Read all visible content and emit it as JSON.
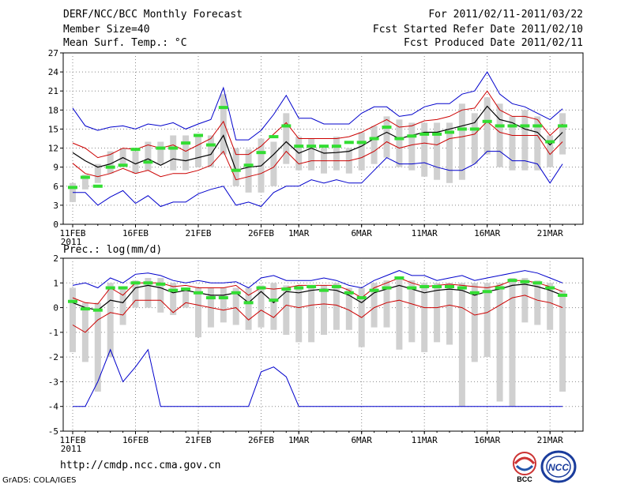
{
  "header": {
    "title": "DERF/NCC/BCC Monthly Forecast",
    "member_size": "Member Size=40",
    "variable": "Mean Surf. Temp.: °C",
    "period": "For 2011/02/11-2011/03/22",
    "started": "Fcst Started Refer Date 2011/02/10",
    "produced": "Fcst Produced Date 2011/02/11"
  },
  "footer": {
    "url": "http://cmdp.ncc.cma.gov.cn",
    "grads": "GrADS: COLA/IGES",
    "logo_bcc": "BCC",
    "logo_ncc": "NCC"
  },
  "colors": {
    "max": "#0000cc",
    "min": "#0000cc",
    "upper": "#cc0000",
    "lower": "#cc0000",
    "mean": "#000000",
    "box": "#d0d0d0",
    "median": "#33dd33",
    "grid": "#888888"
  },
  "chart_data": [
    {
      "type": "line",
      "title": "Mean Surf. Temp.: °C",
      "ylabel": "",
      "ylim": [
        0,
        27
      ],
      "yticks": [
        0,
        3,
        6,
        9,
        12,
        15,
        18,
        21,
        24,
        27
      ],
      "xlim": [
        1,
        41
      ],
      "xticks": [
        {
          "x": 1,
          "label": "11FEB",
          "year": "2011"
        },
        {
          "x": 6,
          "label": "16FEB"
        },
        {
          "x": 11,
          "label": "21FEB"
        },
        {
          "x": 16,
          "label": "26FEB"
        },
        {
          "x": 19,
          "label": "1MAR"
        },
        {
          "x": 24,
          "label": "6MAR"
        },
        {
          "x": 29,
          "label": "11MAR"
        },
        {
          "x": 34,
          "label": "16MAR"
        },
        {
          "x": 39,
          "label": "21MAR"
        }
      ],
      "x": [
        1,
        2,
        3,
        4,
        5,
        6,
        7,
        8,
        9,
        10,
        11,
        12,
        13,
        14,
        15,
        16,
        17,
        18,
        19,
        20,
        21,
        22,
        23,
        24,
        25,
        26,
        27,
        28,
        29,
        30,
        31,
        32,
        33,
        34,
        35,
        36,
        37,
        38,
        39,
        40
      ],
      "series": [
        {
          "name": "max",
          "values": [
            18.3,
            15.5,
            14.8,
            15.3,
            15.5,
            15.0,
            15.8,
            15.5,
            16.0,
            15.0,
            15.8,
            16.5,
            21.5,
            13.3,
            13.3,
            14.8,
            17.3,
            20.3,
            16.7,
            16.7,
            15.8,
            15.8,
            15.8,
            17.5,
            18.5,
            18.5,
            17.0,
            17.3,
            18.5,
            19.0,
            19.0,
            20.5,
            21.0,
            24.0,
            20.5,
            19.0,
            18.5,
            17.5,
            16.5,
            18.2
          ]
        },
        {
          "name": "upper",
          "values": [
            12.8,
            12.0,
            10.5,
            11.0,
            12.0,
            11.8,
            12.5,
            12.0,
            12.5,
            11.5,
            12.5,
            13.5,
            16.2,
            11.0,
            11.0,
            12.3,
            14.2,
            16.0,
            13.5,
            13.5,
            13.5,
            13.5,
            13.8,
            14.5,
            15.5,
            16.5,
            15.3,
            15.5,
            16.3,
            16.5,
            17.0,
            18.0,
            18.3,
            21.0,
            18.0,
            17.0,
            17.0,
            16.5,
            14.0,
            15.8
          ]
        },
        {
          "name": "mean",
          "values": [
            11.3,
            10.0,
            9.0,
            9.5,
            10.5,
            9.5,
            10.3,
            9.3,
            10.3,
            10.0,
            10.5,
            11.0,
            14.0,
            8.5,
            9.0,
            9.2,
            11.0,
            13.0,
            11.2,
            12.0,
            11.2,
            11.3,
            11.5,
            12.3,
            13.5,
            14.5,
            13.5,
            14.0,
            14.5,
            14.5,
            15.0,
            15.5,
            16.0,
            18.6,
            16.5,
            16.0,
            15.0,
            14.5,
            12.5,
            14.5
          ]
        },
        {
          "name": "lower",
          "values": [
            9.6,
            8.0,
            7.5,
            8.0,
            8.8,
            8.0,
            8.5,
            7.5,
            8.0,
            8.0,
            8.5,
            9.3,
            11.5,
            7.0,
            7.5,
            8.0,
            9.0,
            11.5,
            9.5,
            10.0,
            10.0,
            10.0,
            10.0,
            10.5,
            11.5,
            13.0,
            12.0,
            12.5,
            12.8,
            12.5,
            13.5,
            13.8,
            14.2,
            16.2,
            14.5,
            14.0,
            14.0,
            14.0,
            11.0,
            13.0
          ]
        },
        {
          "name": "min",
          "values": [
            5.0,
            5.0,
            3.0,
            4.3,
            5.3,
            3.3,
            4.5,
            2.8,
            3.5,
            3.5,
            4.8,
            5.5,
            6.0,
            3.0,
            3.5,
            2.8,
            5.0,
            6.0,
            6.0,
            7.0,
            6.5,
            7.0,
            6.5,
            6.5,
            8.5,
            10.5,
            9.5,
            9.5,
            9.7,
            9.0,
            8.5,
            8.5,
            9.5,
            11.5,
            11.5,
            10.0,
            10.0,
            9.5,
            6.5,
            9.5
          ]
        },
        {
          "name": "box_top",
          "values": [
            6.5,
            7.8,
            9.5,
            11.5,
            12.0,
            11.5,
            13.0,
            13.0,
            14.0,
            14.0,
            14.0,
            14.0,
            20.5,
            12.0,
            11.8,
            13.5,
            13.0,
            17.5,
            13.8,
            13.5,
            12.0,
            13.8,
            12.0,
            14.5,
            15.5,
            17.0,
            16.5,
            16.0,
            16.0,
            16.0,
            16.0,
            19.0,
            17.5,
            20.0,
            19.0,
            17.0,
            18.0,
            17.0,
            14.0,
            17.5
          ]
        },
        {
          "name": "box_bottom",
          "values": [
            3.5,
            5.5,
            6.5,
            8.0,
            9.0,
            8.0,
            8.5,
            9.5,
            8.5,
            8.5,
            9.0,
            9.0,
            11.0,
            6.0,
            5.0,
            5.0,
            6.0,
            9.5,
            8.5,
            8.5,
            8.0,
            8.5,
            8.0,
            8.5,
            9.5,
            10.5,
            9.0,
            8.5,
            7.5,
            7.0,
            6.5,
            7.0,
            9.5,
            11.0,
            9.0,
            8.5,
            8.5,
            8.5,
            9.0,
            11.0
          ]
        },
        {
          "name": "median",
          "values": [
            5.8,
            7.4,
            6.0,
            9.0,
            9.3,
            11.8,
            9.8,
            12.0,
            12.0,
            12.8,
            14.0,
            12.5,
            18.4,
            8.5,
            9.3,
            11.3,
            13.8,
            15.5,
            12.3,
            12.3,
            12.3,
            12.3,
            12.9,
            12.9,
            13.5,
            15.3,
            13.5,
            13.9,
            14.2,
            14.2,
            14.5,
            15.0,
            15.0,
            16.2,
            15.5,
            15.5,
            15.5,
            15.5,
            13.0,
            15.5
          ]
        }
      ]
    },
    {
      "type": "line",
      "title": "Prec.: log(mm/d)",
      "ylabel": "",
      "ylim": [
        -5,
        2
      ],
      "yticks": [
        -5,
        -4,
        -3,
        -2,
        -1,
        0,
        1,
        2
      ],
      "xlim": [
        1,
        41
      ],
      "xticks": [
        {
          "x": 1,
          "label": "11FEB",
          "year": "2011"
        },
        {
          "x": 6,
          "label": "16FEB"
        },
        {
          "x": 11,
          "label": "21FEB"
        },
        {
          "x": 16,
          "label": "26FEB"
        },
        {
          "x": 19,
          "label": "1MAR"
        },
        {
          "x": 24,
          "label": "6MAR"
        },
        {
          "x": 29,
          "label": "11MAR"
        },
        {
          "x": 34,
          "label": "16MAR"
        },
        {
          "x": 39,
          "label": "21MAR"
        }
      ],
      "x": [
        1,
        2,
        3,
        4,
        5,
        6,
        7,
        8,
        9,
        10,
        11,
        12,
        13,
        14,
        15,
        16,
        17,
        18,
        19,
        20,
        21,
        22,
        23,
        24,
        25,
        26,
        27,
        28,
        29,
        30,
        31,
        32,
        33,
        34,
        35,
        36,
        37,
        38,
        39,
        40
      ],
      "series": [
        {
          "name": "max",
          "values": [
            0.9,
            1.0,
            0.8,
            1.2,
            1.0,
            1.35,
            1.4,
            1.3,
            1.1,
            1.0,
            1.1,
            1.0,
            1.0,
            1.05,
            0.8,
            1.2,
            1.3,
            1.1,
            1.1,
            1.1,
            1.2,
            1.1,
            0.9,
            0.8,
            1.1,
            1.3,
            1.5,
            1.3,
            1.3,
            1.1,
            1.2,
            1.3,
            1.1,
            1.2,
            1.3,
            1.4,
            1.5,
            1.4,
            1.2,
            1.0
          ]
        },
        {
          "name": "upper",
          "values": [
            0.4,
            0.2,
            0.15,
            0.8,
            0.5,
            1.0,
            1.0,
            1.0,
            0.85,
            0.9,
            0.8,
            0.8,
            0.8,
            0.9,
            0.5,
            0.8,
            0.75,
            0.8,
            0.9,
            0.9,
            0.9,
            0.9,
            0.7,
            0.4,
            0.8,
            1.0,
            1.2,
            1.0,
            0.85,
            0.9,
            0.95,
            0.9,
            0.85,
            0.8,
            0.9,
            1.1,
            1.1,
            1.0,
            0.85,
            0.65
          ]
        },
        {
          "name": "mean",
          "values": [
            0.2,
            0.0,
            -0.1,
            0.3,
            0.2,
            0.8,
            0.9,
            0.8,
            0.6,
            0.7,
            0.6,
            0.5,
            0.5,
            0.6,
            0.2,
            0.65,
            0.2,
            0.65,
            0.6,
            0.7,
            0.75,
            0.7,
            0.5,
            0.2,
            0.6,
            0.75,
            0.9,
            0.75,
            0.6,
            0.7,
            0.75,
            0.7,
            0.5,
            0.65,
            0.75,
            0.9,
            0.95,
            0.85,
            0.7,
            0.5
          ]
        },
        {
          "name": "lower",
          "values": [
            -0.7,
            -1.0,
            -0.5,
            -0.2,
            -0.3,
            0.3,
            0.3,
            0.3,
            -0.2,
            0.2,
            0.1,
            0.0,
            -0.1,
            0.0,
            -0.5,
            -0.1,
            -0.4,
            0.1,
            0.0,
            0.1,
            0.15,
            0.1,
            -0.1,
            -0.4,
            0.0,
            0.2,
            0.3,
            0.15,
            0.0,
            0.0,
            0.1,
            0.0,
            -0.3,
            -0.2,
            0.1,
            0.4,
            0.5,
            0.3,
            0.2,
            0.0
          ]
        },
        {
          "name": "min",
          "values": [
            -4.0,
            -4.0,
            -3.0,
            -1.7,
            -3.0,
            -2.4,
            -1.7,
            -4.0,
            -4.0,
            -4.0,
            -4.0,
            -4.0,
            -4.0,
            -4.0,
            -4.0,
            -2.6,
            -2.4,
            -2.8,
            -4.0,
            -4.0,
            -4.0,
            -4.0,
            -4.0,
            -4.0,
            -4.0,
            -4.0,
            -4.0,
            -4.0,
            -4.0,
            -4.0,
            -4.0,
            -4.0,
            -4.0,
            -4.0,
            -4.0,
            -4.0,
            -4.0,
            -4.0,
            -4.0,
            -4.0
          ]
        },
        {
          "name": "box_top",
          "values": [
            0.8,
            0.2,
            0.2,
            1.0,
            0.8,
            1.1,
            1.2,
            1.2,
            1.0,
            0.8,
            0.8,
            0.8,
            0.8,
            0.8,
            0.8,
            0.9,
            1.0,
            0.9,
            0.9,
            0.9,
            0.9,
            1.0,
            0.8,
            0.8,
            1.0,
            1.1,
            1.2,
            1.1,
            1.0,
            1.0,
            1.0,
            1.0,
            1.0,
            1.0,
            1.0,
            1.2,
            1.2,
            1.1,
            1.0,
            0.7
          ]
        },
        {
          "name": "box_bottom",
          "values": [
            -1.8,
            -2.2,
            -3.4,
            -2.0,
            -0.7,
            0.0,
            0.0,
            -0.2,
            -0.3,
            0.0,
            -1.2,
            -0.8,
            -0.6,
            -0.7,
            -0.9,
            -0.8,
            -0.9,
            -1.1,
            -1.4,
            -1.4,
            -1.1,
            -0.9,
            -0.9,
            -1.6,
            -0.8,
            -0.8,
            -1.7,
            -1.4,
            -1.8,
            -1.4,
            -1.5,
            -4.0,
            -2.2,
            -2.0,
            -3.8,
            -4.0,
            -0.6,
            -0.7,
            -0.9,
            -3.4
          ]
        },
        {
          "name": "median",
          "values": [
            0.25,
            -0.05,
            -0.1,
            0.8,
            0.8,
            1.0,
            1.0,
            0.95,
            0.7,
            0.75,
            0.6,
            0.4,
            0.4,
            0.6,
            0.2,
            0.8,
            0.3,
            0.75,
            0.8,
            0.85,
            0.7,
            0.85,
            0.6,
            0.4,
            0.7,
            0.8,
            1.2,
            0.8,
            0.85,
            0.85,
            0.85,
            0.8,
            0.6,
            0.65,
            0.8,
            1.1,
            1.05,
            1.0,
            0.8,
            0.5
          ]
        }
      ]
    }
  ]
}
